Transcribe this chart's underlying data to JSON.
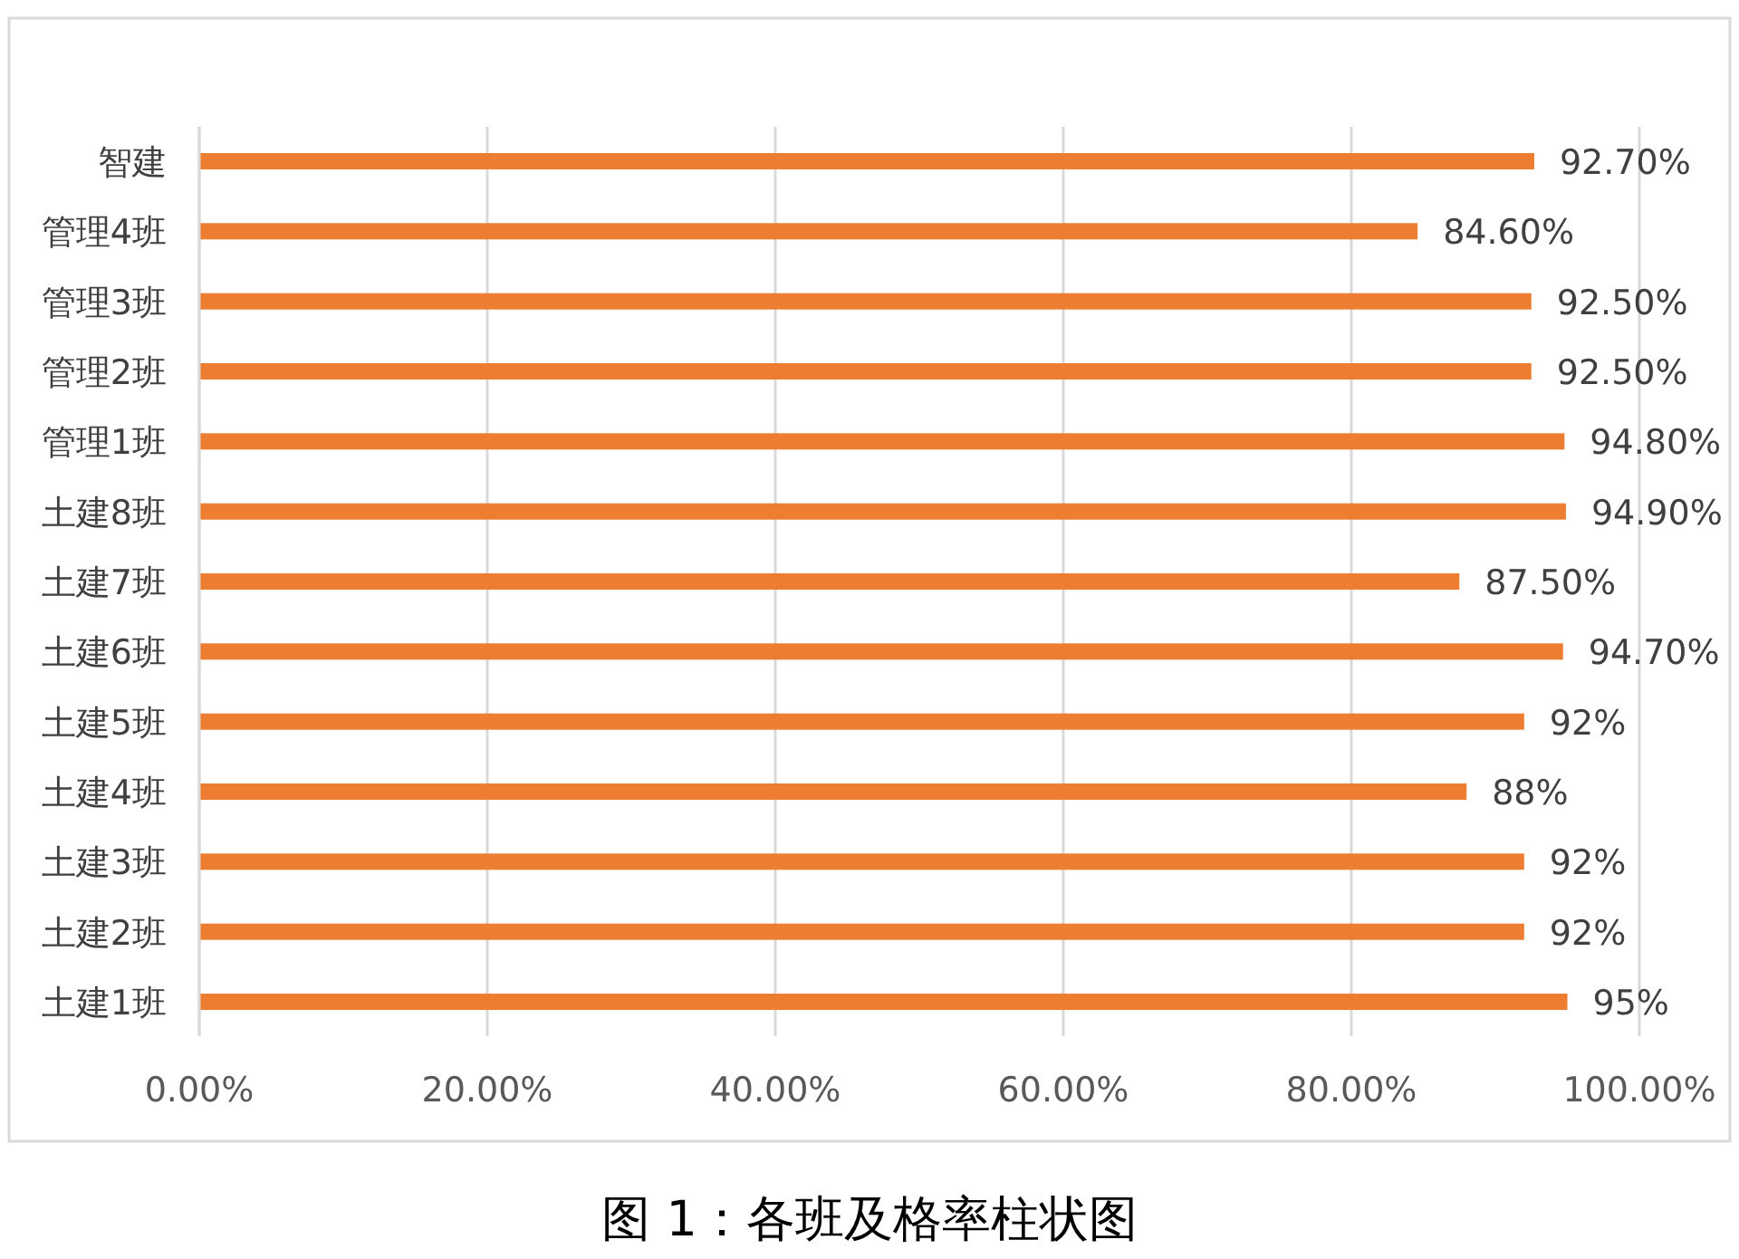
{
  "chart_data": {
    "type": "bar",
    "orientation": "horizontal",
    "categories": [
      "智建",
      "管理4班",
      "管理3班",
      "管理2班",
      "管理1班",
      "土建8班",
      "土建7班",
      "土建6班",
      "土建5班",
      "土建4班",
      "土建3班",
      "土建2班",
      "土建1班"
    ],
    "values": [
      92.7,
      84.6,
      92.5,
      92.5,
      94.8,
      94.9,
      87.5,
      94.7,
      92,
      88,
      92,
      92,
      95
    ],
    "value_labels": [
      "92.70%",
      "84.60%",
      "92.50%",
      "92.50%",
      "94.80%",
      "94.90%",
      "87.50%",
      "94.70%",
      "92%",
      "88%",
      "92%",
      "92%",
      "95%"
    ],
    "color": "#ed7d31",
    "xlim": [
      0,
      100
    ],
    "xticks": [
      {
        "value": 0,
        "label": "0.00%"
      },
      {
        "value": 20,
        "label": "20.00%"
      },
      {
        "value": 40,
        "label": "40.00%"
      },
      {
        "value": 60,
        "label": "60.00%"
      },
      {
        "value": 80,
        "label": "80.00%"
      },
      {
        "value": 100,
        "label": "100.00%"
      }
    ],
    "grid": "x",
    "annotations": [
      "图 1：各班及格率柱状图"
    ]
  }
}
